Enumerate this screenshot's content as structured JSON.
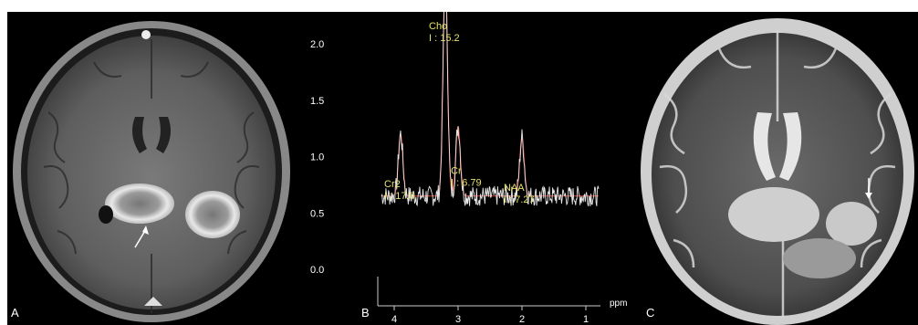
{
  "panels": {
    "a": {
      "label": "A"
    },
    "b": {
      "label": "B"
    },
    "c": {
      "label": "C"
    }
  },
  "spectrum": {
    "y_ticks": [
      "2.0",
      "1.5",
      "1.0",
      "0.5",
      "0.0"
    ],
    "x_ticks": [
      "4",
      "3",
      "2",
      "1"
    ],
    "x_unit": "ppm",
    "peaks": [
      {
        "name": "Cho",
        "integral": "I : 15.2",
        "ppm": 3.2,
        "height": 1.95
      },
      {
        "name": "Cr",
        "integral": "I : 6.79",
        "ppm": 3.0,
        "height": 0.62
      },
      {
        "name": "Cr2",
        "integral": "I : 17.6",
        "ppm": 3.9,
        "height": 0.55
      },
      {
        "name": "NAA",
        "integral": "I : 7.27",
        "ppm": 2.0,
        "height": 0.52
      }
    ],
    "colors": {
      "text": "#e6e36a",
      "fit": "#c0392b",
      "trace": "#e8e8e8"
    }
  }
}
